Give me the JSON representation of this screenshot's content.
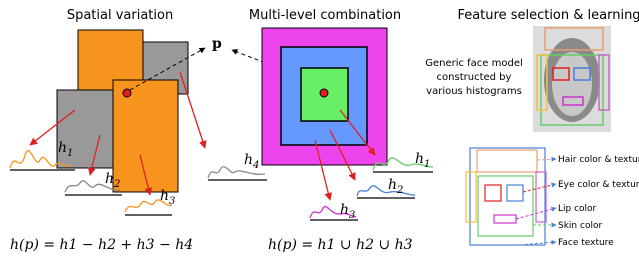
{
  "panels": [
    {
      "title": "Spatial variation",
      "point": "p",
      "histograms": [
        {
          "base": "h",
          "sub": "1"
        },
        {
          "base": "h",
          "sub": "2"
        },
        {
          "base": "h",
          "sub": "3"
        },
        {
          "base": "h",
          "sub": "4"
        }
      ],
      "formula": "h(p) = h1 − h2 + h3 − h4"
    },
    {
      "title": "Multi-level combination",
      "histograms": [
        {
          "base": "h",
          "sub": "1"
        },
        {
          "base": "h",
          "sub": "2"
        },
        {
          "base": "h",
          "sub": "3"
        }
      ],
      "formula": "h(p) = h1 ∪ h2 ∪ h3"
    },
    {
      "title": "Feature selection & learning",
      "caption": [
        "Generic face model",
        "constructed by",
        "various histograms"
      ],
      "features": [
        "Hair color & texture",
        "Eye color & texture",
        "Lip color",
        "Skin color",
        "Face texture"
      ]
    }
  ]
}
